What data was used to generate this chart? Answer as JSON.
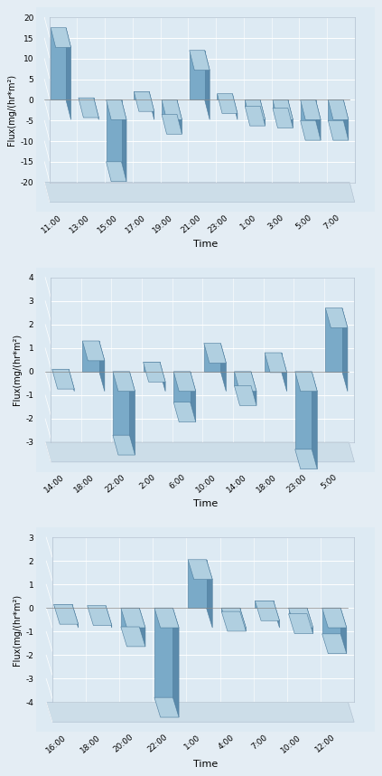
{
  "chart1": {
    "categories": [
      "11:00",
      "13:00",
      "15:00",
      "17:00",
      "19:00",
      "21:00",
      "23:00",
      "1:00",
      "3:00",
      "5:00",
      "7:00"
    ],
    "values": [
      17.5,
      0.5,
      -15.0,
      2.0,
      -3.5,
      12.0,
      1.5,
      -1.5,
      -2.0,
      -5.0,
      -5.0
    ],
    "ylabel": "Flux(mg/(hr*m²)",
    "xlabel": "Time",
    "ylim": [
      -20,
      20
    ],
    "yticks": [
      -20,
      -15,
      -10,
      -5,
      0,
      5,
      10,
      15,
      20
    ]
  },
  "chart2": {
    "categories": [
      "14:00",
      "18:00",
      "22:00",
      "2:00",
      "6:00",
      "10:00",
      "14:00",
      "18:00",
      "23:00",
      "5:00"
    ],
    "values": [
      0.1,
      1.3,
      -2.7,
      0.4,
      -1.3,
      1.2,
      -0.6,
      0.8,
      -3.3,
      2.7
    ],
    "ylabel": "Flux(mg/(hr*m²)",
    "xlabel": "Time",
    "ylim": [
      -3,
      4
    ],
    "yticks": [
      -3,
      -2,
      -1,
      0,
      1,
      2,
      3,
      4
    ]
  },
  "chart3": {
    "categories": [
      "16:00",
      "18:00",
      "20:00",
      "22:00",
      "1:00",
      "4:00",
      "7:00",
      "10:00",
      "12:00"
    ],
    "values": [
      0.15,
      0.1,
      -0.8,
      -3.8,
      2.05,
      -0.15,
      0.3,
      -0.25,
      -1.1
    ],
    "ylabel": "Flux(mg/(hr*m²)",
    "xlabel": "Time",
    "ylim": [
      -4,
      3
    ],
    "yticks": [
      -4,
      -3,
      -2,
      -1,
      0,
      1,
      2,
      3
    ]
  },
  "bar_color_face": "#7aaac8",
  "bar_color_side": "#5b8aab",
  "bar_color_top": "#b0cfe0",
  "bg_plot": "#ddeaf3",
  "bg_fig": "#e4edf4",
  "grid_color": "#ffffff",
  "floor_color": "#ccdde8"
}
